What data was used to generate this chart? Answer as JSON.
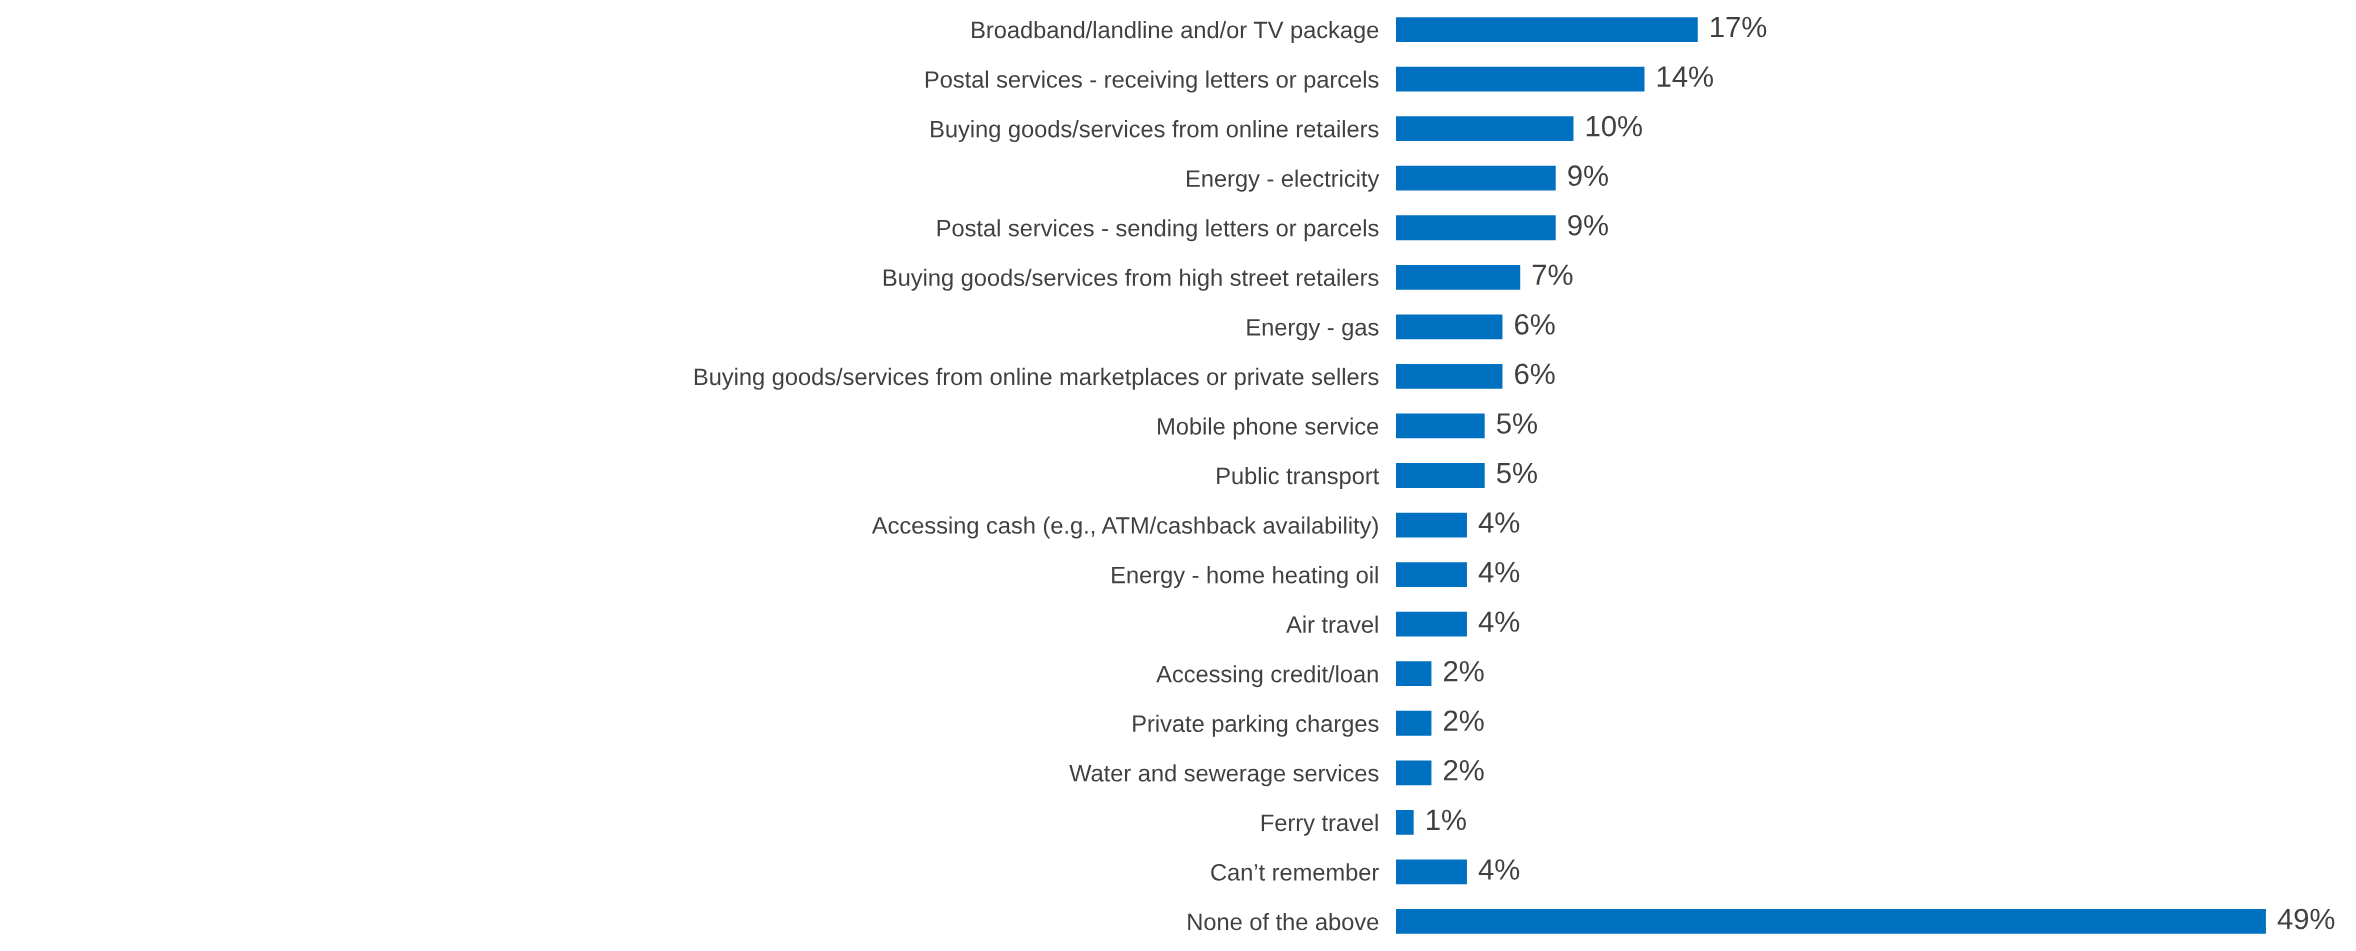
{
  "chart_data": {
    "type": "bar",
    "orientation": "horizontal",
    "color": "#0070c0",
    "categories": [
      "Broadband/landline and/or TV package",
      "Postal services - receiving letters or parcels",
      "Buying goods/services from online retailers",
      "Energy - electricity",
      "Postal services - sending letters or parcels",
      "Buying goods/services from high street retailers",
      "Energy - gas",
      "Buying goods/services from online marketplaces or private sellers",
      "Mobile phone service",
      "Public transport",
      "Accessing cash (e.g., ATM/cashback availability)",
      "Energy - home heating oil",
      "Air travel",
      "Accessing credit/loan",
      "Private parking charges",
      "Water and sewerage services",
      "Ferry travel",
      "Can’t remember",
      "None of the above"
    ],
    "values": [
      17,
      14,
      10,
      9,
      9,
      7,
      6,
      6,
      5,
      5,
      4,
      4,
      4,
      2,
      2,
      2,
      1,
      4,
      49
    ],
    "value_labels": [
      "17%",
      "14%",
      "10%",
      "9%",
      "9%",
      "7%",
      "6%",
      "6%",
      "5%",
      "5%",
      "4%",
      "4%",
      "4%",
      "2%",
      "2%",
      "2%",
      "1%",
      "4%",
      "49%"
    ],
    "grid": false,
    "legend": false
  }
}
